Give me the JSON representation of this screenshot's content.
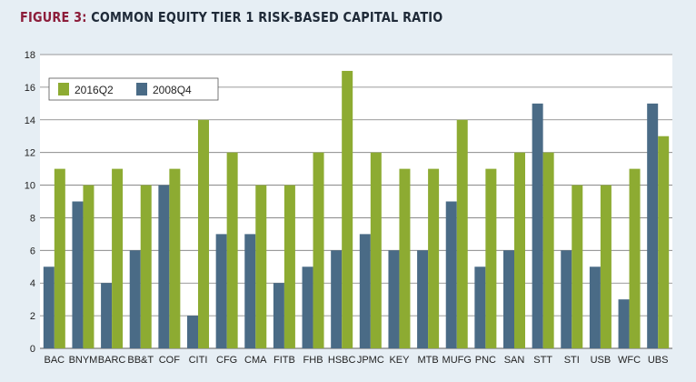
{
  "figure_label": "FIGURE 3:",
  "figure_title": "COMMON EQUITY TIER 1 RISK-BASED CAPITAL RATIO",
  "colors": {
    "2016Q2": "#8dab32",
    "2008Q4": "#4a6b86",
    "grid": "#7a7a7a"
  },
  "chart_data": {
    "type": "bar",
    "title": "COMMON EQUITY TIER 1 RISK-BASED CAPITAL RATIO",
    "xlabel": "",
    "ylabel": "",
    "ylim": [
      0,
      18
    ],
    "yticks": [
      0,
      2,
      4,
      6,
      8,
      10,
      12,
      14,
      16,
      18
    ],
    "grid": true,
    "legend_position": "top-left",
    "categories": [
      "BAC",
      "BNYM",
      "BARC",
      "BB&T",
      "COF",
      "CITI",
      "CFG",
      "CMA",
      "FITB",
      "FHB",
      "HSBC",
      "JPMC",
      "KEY",
      "MTB",
      "MUFG",
      "PNC",
      "SAN",
      "STT",
      "STI",
      "USB",
      "WFC",
      "UBS"
    ],
    "series": [
      {
        "name": "2008Q4",
        "values": [
          5,
          9,
          4,
          6,
          10,
          2,
          7,
          7,
          4,
          5,
          6,
          7,
          6,
          6,
          9,
          5,
          6,
          15,
          6,
          5,
          3,
          15
        ]
      },
      {
        "name": "2016Q2",
        "values": [
          11,
          10,
          11,
          10,
          11,
          14,
          12,
          10,
          10,
          12,
          17,
          12,
          11,
          11,
          14,
          11,
          12,
          12,
          10,
          10,
          11,
          13
        ]
      }
    ],
    "legend_order": [
      "2016Q2",
      "2008Q4"
    ]
  }
}
